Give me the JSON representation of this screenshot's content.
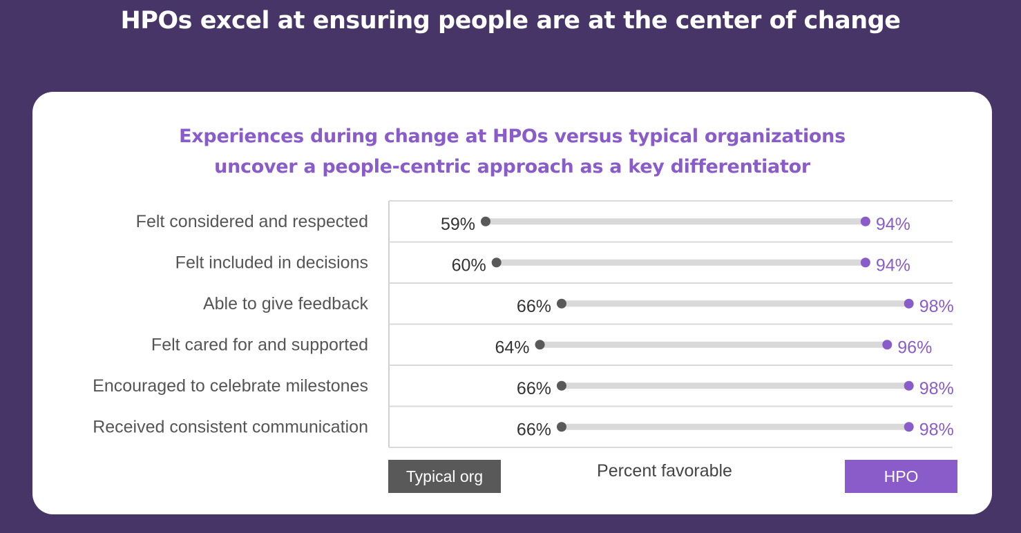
{
  "page": {
    "title": "HPOs excel at ensuring people are at the center of change"
  },
  "chart_data": {
    "type": "dumbbell",
    "title_lines": [
      "Experiences during change at HPOs versus typical organizations",
      "uncover a people-centric approach as a key differentiator"
    ],
    "xlabel": "Percent favorable",
    "categories": [
      "Felt considered and respected",
      "Felt included in decisions",
      "Able to give feedback",
      "Felt cared for and supported",
      "Encouraged to celebrate milestones",
      "Received consistent communication"
    ],
    "series": [
      {
        "name": "Typical org",
        "values": [
          59,
          60,
          66,
          64,
          66,
          66
        ],
        "labels": [
          "59%",
          "60%",
          "66%",
          "64%",
          "66%",
          "66%"
        ],
        "color": "#595959"
      },
      {
        "name": "HPO",
        "values": [
          94,
          94,
          98,
          96,
          98,
          98
        ],
        "labels": [
          "94%",
          "94%",
          "98%",
          "96%",
          "98%",
          "98%"
        ],
        "color": "#8a5cc9"
      }
    ],
    "connector_color": "#d9d9d9",
    "gridlines": true,
    "legend": "bottom"
  }
}
